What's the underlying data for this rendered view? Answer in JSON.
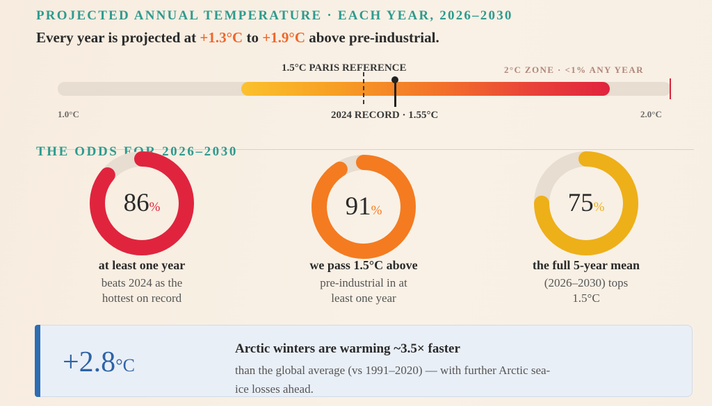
{
  "header": {
    "kicker": "PROJECTED ANNUAL TEMPERATURE · EACH YEAR, 2026–2030",
    "sub_prefix": "Every year is projected at ",
    "range_low": "+1.3°C",
    "sub_mid": " to ",
    "range_high": "+1.9°C",
    "sub_suffix": " above pre-industrial."
  },
  "scale": {
    "min_label": "1.0°C",
    "max_label": "2.0°C",
    "reference_label": "1.5°C PARIS REFERENCE",
    "zone_label": "2°C ZONE · <1% ANY YEAR",
    "record_label": "2024 RECORD · 1.55°C",
    "min_value": 1.0,
    "max_value": 2.0,
    "range_low_value": 1.3,
    "range_high_value": 1.9,
    "reference_value": 1.5,
    "record_value": 1.55,
    "colors": {
      "track": "#e7ddd0",
      "range_start": "#fbc12c",
      "range_end": "#e0243e"
    }
  },
  "odds": {
    "title": "THE ODDS FOR 2026–2030",
    "items": [
      {
        "value": "86",
        "unit": "%",
        "fraction": 0.86,
        "color": "#e0243e",
        "headline": "at least one year",
        "desc1": "beats 2024 as the",
        "desc2": "hottest on record",
        "desc3": ""
      },
      {
        "value": "91",
        "unit": "%",
        "fraction": 0.91,
        "color": "#f47b20",
        "headline": "we pass 1.5°C above",
        "desc1": "pre-industrial in at",
        "desc2": "least one year",
        "desc3": ""
      },
      {
        "value": "75",
        "unit": "%",
        "fraction": 0.75,
        "color": "#eeb018",
        "headline": "the full 5-year mean",
        "desc1": "(2026–2030) tops",
        "desc2": "1.5°C",
        "desc3": ""
      }
    ]
  },
  "callout": {
    "value": "+2.8",
    "unit": "°C",
    "headline": "Arctic winters are warming ~3.5× faster",
    "body": "than the global average (vs 1991–2020) — with further Arctic sea-ice losses ahead.",
    "accent": "#2e6db3"
  }
}
